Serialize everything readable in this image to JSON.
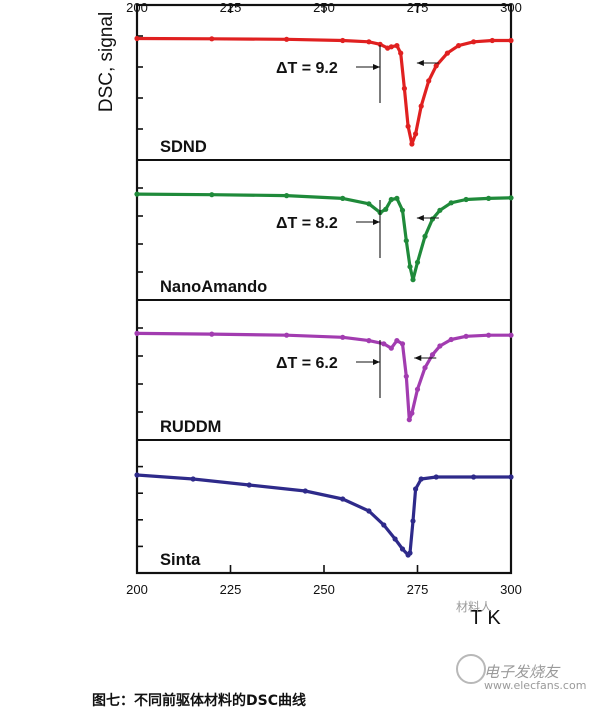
{
  "chart_data": {
    "type": "line",
    "ylabel": "DSC, signal",
    "xlabel": "T K",
    "xlim": [
      200,
      300
    ],
    "x_ticks": [
      "200",
      "225",
      "250",
      "275",
      "300"
    ],
    "grid": false,
    "panels": [
      {
        "name": "SDND",
        "color": "#e02020",
        "delta_label": "ΔT = 9.2",
        "peak_x": 273.5,
        "points": [
          [
            200,
            0.02
          ],
          [
            220,
            0.03
          ],
          [
            240,
            0.05
          ],
          [
            255,
            0.1
          ],
          [
            262,
            0.15
          ],
          [
            265,
            0.25
          ],
          [
            267,
            0.4
          ],
          [
            268,
            0.35
          ],
          [
            269.5,
            0.3
          ],
          [
            270.5,
            0.6
          ],
          [
            271.5,
            2.0
          ],
          [
            272.5,
            3.5
          ],
          [
            273.5,
            4.2
          ],
          [
            274.5,
            3.8
          ],
          [
            276,
            2.7
          ],
          [
            278,
            1.7
          ],
          [
            280,
            1.1
          ],
          [
            283,
            0.6
          ],
          [
            286,
            0.3
          ],
          [
            290,
            0.15
          ],
          [
            295,
            0.1
          ],
          [
            300,
            0.1
          ]
        ]
      },
      {
        "name": "NanoAmando",
        "color": "#1f8a3a",
        "delta_label": "ΔT = 8.2",
        "peak_x": 273.5,
        "points": [
          [
            200,
            0.05
          ],
          [
            220,
            0.08
          ],
          [
            240,
            0.12
          ],
          [
            255,
            0.25
          ],
          [
            262,
            0.5
          ],
          [
            265,
            0.9
          ],
          [
            266.5,
            0.75
          ],
          [
            268,
            0.3
          ],
          [
            269.5,
            0.25
          ],
          [
            271,
            0.8
          ],
          [
            272,
            2.2
          ],
          [
            273,
            3.4
          ],
          [
            273.8,
            4.0
          ],
          [
            275,
            3.2
          ],
          [
            277,
            2.0
          ],
          [
            279,
            1.2
          ],
          [
            281,
            0.8
          ],
          [
            284,
            0.45
          ],
          [
            288,
            0.3
          ],
          [
            294,
            0.25
          ],
          [
            300,
            0.22
          ]
        ]
      },
      {
        "name": "RUDDM",
        "color": "#a23cb0",
        "delta_label": "ΔT = 6.2",
        "peak_x": 272.8,
        "points": [
          [
            200,
            0.02
          ],
          [
            220,
            0.05
          ],
          [
            240,
            0.1
          ],
          [
            255,
            0.2
          ],
          [
            262,
            0.35
          ],
          [
            266,
            0.5
          ],
          [
            268,
            0.7
          ],
          [
            269.5,
            0.35
          ],
          [
            271,
            0.5
          ],
          [
            272,
            2.0
          ],
          [
            272.8,
            4.0
          ],
          [
            273.5,
            3.7
          ],
          [
            275,
            2.6
          ],
          [
            277,
            1.6
          ],
          [
            279,
            1.0
          ],
          [
            281,
            0.6
          ],
          [
            284,
            0.3
          ],
          [
            288,
            0.15
          ],
          [
            294,
            0.1
          ],
          [
            300,
            0.1
          ]
        ]
      },
      {
        "name": "Sinta",
        "color": "#2e2a8a",
        "delta_label": "",
        "peak_x": 272.8,
        "points": [
          [
            200,
            0.1
          ],
          [
            215,
            0.3
          ],
          [
            230,
            0.6
          ],
          [
            245,
            0.9
          ],
          [
            255,
            1.3
          ],
          [
            262,
            1.9
          ],
          [
            266,
            2.6
          ],
          [
            269,
            3.3
          ],
          [
            271,
            3.8
          ],
          [
            272.5,
            4.1
          ],
          [
            273,
            4.0
          ],
          [
            273.8,
            2.4
          ],
          [
            274.5,
            0.8
          ],
          [
            276,
            0.3
          ],
          [
            280,
            0.2
          ],
          [
            290,
            0.2
          ],
          [
            300,
            0.2
          ]
        ]
      }
    ]
  },
  "caption": "图七：不同前驱体材料的DSC曲线",
  "watermark_top": "材料人",
  "watermark_brand": "电子发烧友",
  "watermark_url": "www.elecfans.com"
}
